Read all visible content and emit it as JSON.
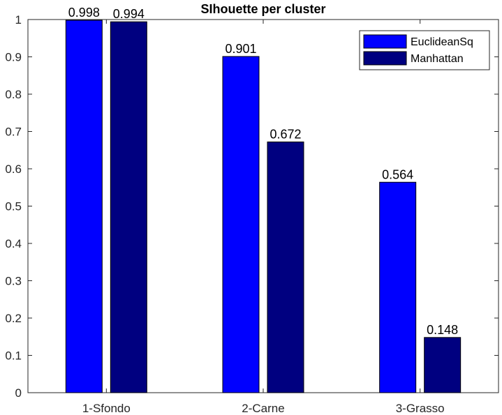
{
  "chart_data": {
    "type": "bar",
    "title": "SIhouette per cluster",
    "categories": [
      "1-Sfondo",
      "2-Carne",
      "3-Grasso"
    ],
    "series": [
      {
        "name": "EuclideanSq",
        "values": [
          0.998,
          0.901,
          0.564
        ],
        "color": "#0000ff"
      },
      {
        "name": "Manhattan",
        "values": [
          0.994,
          0.672,
          0.148
        ],
        "color": "#000080"
      }
    ],
    "data_labels": [
      [
        "0.998",
        "0.901",
        "0.564"
      ],
      [
        "0.994",
        "0.672",
        "0.148"
      ]
    ],
    "ylim": [
      0,
      1
    ],
    "yticks": [
      0,
      0.1,
      0.2,
      0.3,
      0.4,
      0.5,
      0.6,
      0.7,
      0.8,
      0.9,
      1
    ],
    "ytick_labels": [
      "0",
      "0.1",
      "0.2",
      "0.3",
      "0.4",
      "0.5",
      "0.6",
      "0.7",
      "0.8",
      "0.9",
      "1"
    ],
    "xlabel": "",
    "ylabel": "",
    "grid": false,
    "legend_position": "top-right",
    "axis_color": "#262626",
    "bar_edge_color": "#000000"
  }
}
